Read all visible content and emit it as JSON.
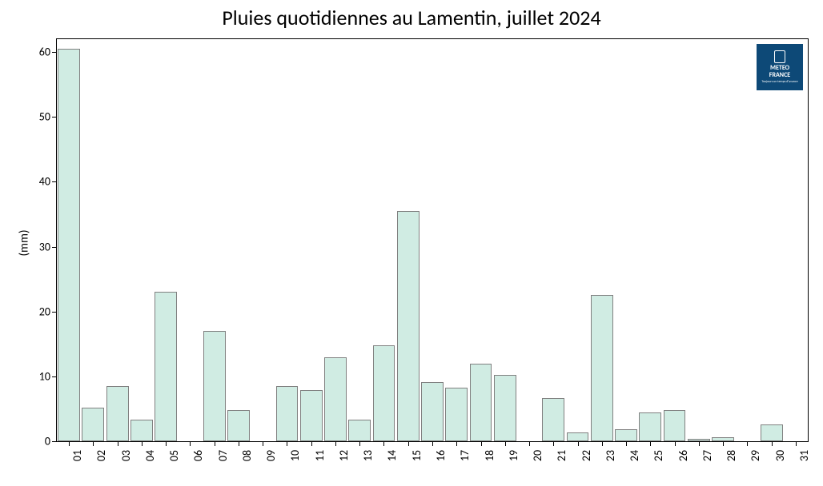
{
  "chart": {
    "type": "bar",
    "title": "Pluies quotidiennes au Lamentin, juillet 2024",
    "title_fontsize": 26,
    "ylabel": "(mm)",
    "label_fontsize": 15,
    "ylim": [
      0,
      62
    ],
    "yticks": [
      0,
      10,
      20,
      30,
      40,
      50,
      60
    ],
    "tick_fontsize": 14,
    "bar_fill": "#d0ece3",
    "bar_border": "#808080",
    "plot_border": "#000000",
    "background_color": "#ffffff",
    "bar_width_ratio": 0.92,
    "categories": [
      "01",
      "02",
      "03",
      "04",
      "05",
      "06",
      "07",
      "08",
      "09",
      "10",
      "11",
      "12",
      "13",
      "14",
      "15",
      "16",
      "17",
      "18",
      "19",
      "20",
      "21",
      "22",
      "23",
      "24",
      "25",
      "26",
      "27",
      "28",
      "29",
      "30",
      "31"
    ],
    "values": [
      60.5,
      5.2,
      8.5,
      3.3,
      23.0,
      0,
      17.0,
      4.8,
      0,
      8.5,
      7.9,
      13.0,
      3.3,
      14.8,
      35.5,
      9.1,
      8.2,
      12.0,
      10.2,
      0,
      6.7,
      1.4,
      22.6,
      1.9,
      4.5,
      4.8,
      0.4,
      0.6,
      0,
      2.6,
      0
    ]
  },
  "logo": {
    "line1": "METEO",
    "line2": "FRANCE",
    "sub": "Toujours un temps d'avance"
  }
}
